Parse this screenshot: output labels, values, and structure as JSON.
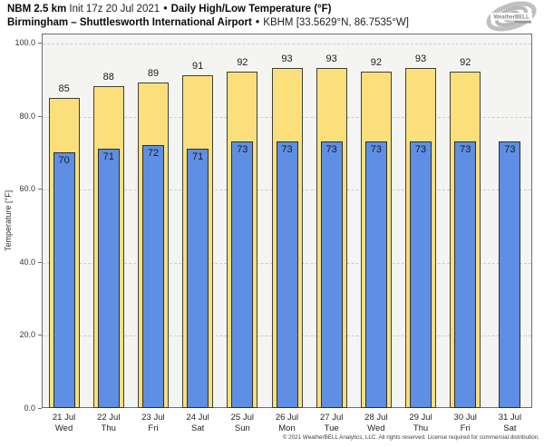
{
  "header": {
    "model": "NBM 2.5 km",
    "init": "Init 17z 20 Jul 2021",
    "bullet": "•",
    "product": "Daily High/Low Temperature (°F)",
    "location": "Birmingham – Shuttlesworth International Airport",
    "station": "KBHM [33.5629°N, 86.7535°W]"
  },
  "logo": {
    "brand": "WeatherBELL"
  },
  "footer": {
    "copyright": "© 2021 WeatherBELL Analytics, LLC. All rights reserved. License required for commercial distribution."
  },
  "chart_data": {
    "type": "bar",
    "title": "NBM 2.5 km Init 17z 20 Jul 2021 • Daily High/Low Temperature (°F)",
    "subtitle": "Birmingham – Shuttlesworth International Airport • KBHM [33.5629°N, 86.7535°W]",
    "categories": [
      {
        "date": "21 Jul",
        "day": "Wed"
      },
      {
        "date": "22 Jul",
        "day": "Thu"
      },
      {
        "date": "23 Jul",
        "day": "Fri"
      },
      {
        "date": "24 Jul",
        "day": "Sat"
      },
      {
        "date": "25 Jul",
        "day": "Sun"
      },
      {
        "date": "26 Jul",
        "day": "Mon"
      },
      {
        "date": "27 Jul",
        "day": "Tue"
      },
      {
        "date": "28 Jul",
        "day": "Wed"
      },
      {
        "date": "29 Jul",
        "day": "Thu"
      },
      {
        "date": "30 Jul",
        "day": "Fri"
      },
      {
        "date": "31 Jul",
        "day": "Sat"
      }
    ],
    "series": [
      {
        "name": "Daily High",
        "color": "#FBDF7B",
        "border_color": "#3F3F38",
        "values": [
          85,
          88,
          89,
          91,
          92,
          93,
          93,
          92,
          93,
          92,
          null
        ]
      },
      {
        "name": "Daily Low",
        "color": "#5E8FE4",
        "border_color": "#2E2E2E",
        "values": [
          70,
          71,
          72,
          71,
          73,
          73,
          73,
          73,
          73,
          73,
          73
        ]
      }
    ],
    "ylabel": "Temperature [°F]",
    "ylim": [
      0,
      102.5
    ],
    "yticks": [
      0,
      20,
      40,
      60,
      80,
      100
    ],
    "ytick_labels": [
      "0.0",
      "20.0",
      "40.0",
      "60.0",
      "80.0",
      "100.0"
    ],
    "grid": "horizontal-dashed",
    "legend": "none",
    "plot_bg": "#F4F4F3",
    "grid_color": "#CDCDCD",
    "frame_color": "#6E6E6E"
  }
}
